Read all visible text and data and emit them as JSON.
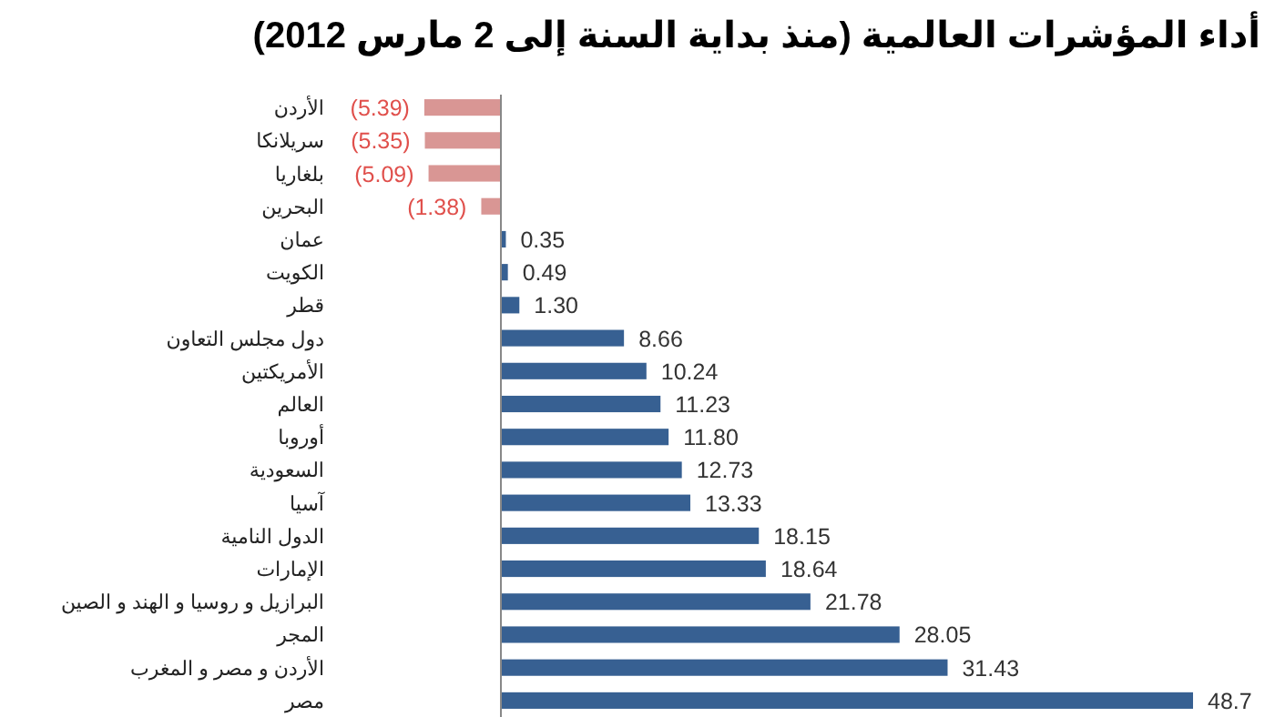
{
  "chart_data": {
    "type": "bar",
    "orientation": "horizontal",
    "title": "أداء المؤشرات العالمية (منذ بداية السنة إلى 2 مارس 2012)",
    "categories": [
      "الأردن",
      "سريلانكا",
      "بلغاريا",
      "البحرين",
      "عمان",
      "الكويت",
      "قطر",
      "دول مجلس التعاون",
      "الأمريكتين",
      "العالم",
      "أوروبا",
      "السعودية",
      "آسيا",
      "الدول النامية",
      "الإمارات",
      "البرازيل و روسيا و الهند و الصين",
      "المجر",
      "الأردن و مصر و المغرب",
      "مصر"
    ],
    "values": [
      -5.39,
      -5.35,
      -5.09,
      -1.38,
      0.35,
      0.49,
      1.3,
      8.66,
      10.24,
      11.23,
      11.8,
      12.73,
      13.33,
      18.15,
      18.64,
      21.78,
      28.05,
      31.43,
      48.7
    ],
    "colors": [
      "#d99694",
      "#d99694",
      "#d99694",
      "#d99694",
      "#376092",
      "#376092",
      "#376092",
      "#376092",
      "#376092",
      "#376092",
      "#376092",
      "#376092",
      "#376092",
      "#376092",
      "#376092",
      "#376092",
      "#376092",
      "#376092",
      "#376092"
    ],
    "value_labels": [
      "(5.39)",
      "(5.35)",
      "(5.09)",
      "(1.38)",
      "0.35",
      "0.49",
      "1.30",
      "8.66",
      "10.24",
      "11.23",
      "11.80",
      "12.73",
      "13.33",
      "18.15",
      "18.64",
      "21.78",
      "28.05",
      "31.43",
      "48.7"
    ]
  }
}
